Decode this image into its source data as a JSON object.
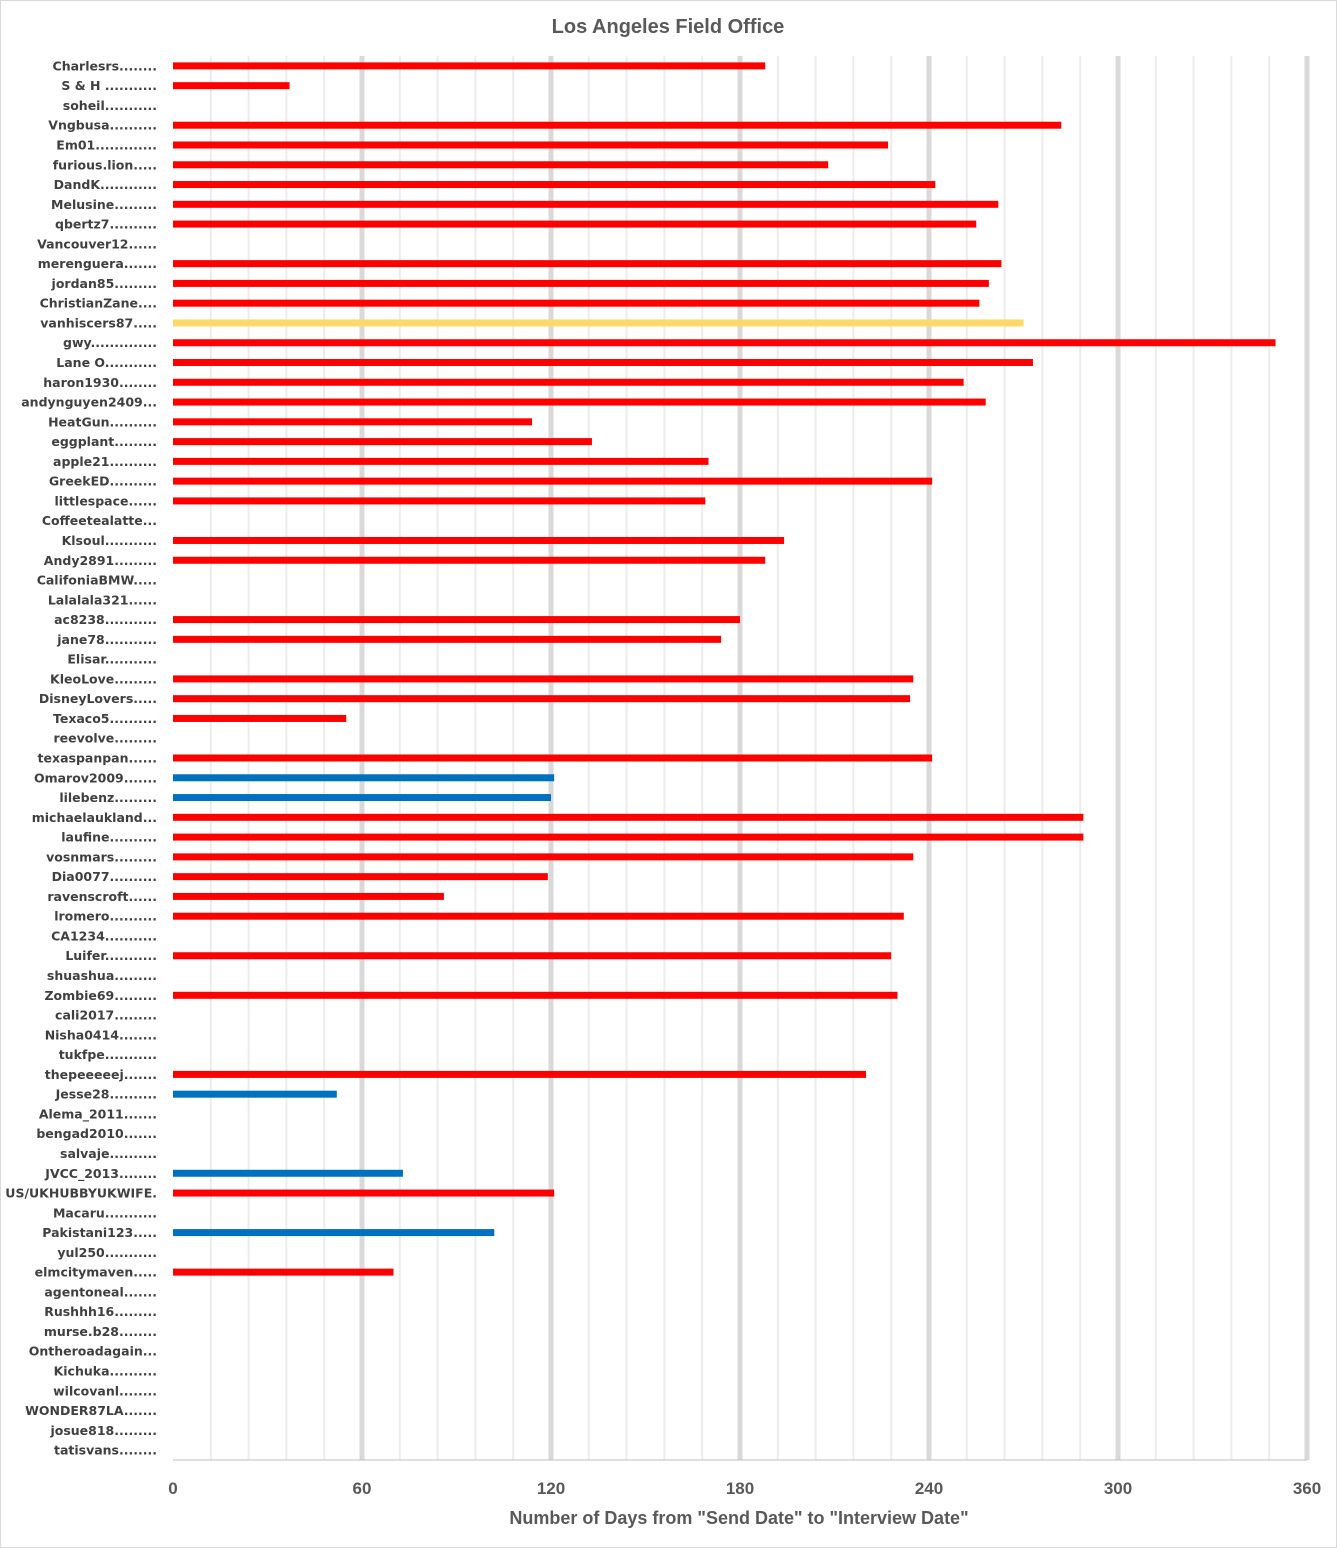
{
  "chart_data": {
    "type": "bar",
    "orientation": "horizontal",
    "title": "Los Angeles Field Office",
    "xlabel": "Number of Days from \"Send Date\" to \"Interview Date\"",
    "ylabel": "",
    "xlim": [
      0,
      360
    ],
    "xticks": [
      0,
      60,
      120,
      180,
      240,
      300,
      360
    ],
    "grid": "vertical, major every 60 and minor every 12",
    "colors": {
      "default": "#ff0000",
      "highlight": "#ffd966",
      "alt": "#0070c0"
    },
    "categories": [
      "Charlesrs........",
      "S & H ...........",
      "soheil...........",
      "Vngbusa..........",
      "Em01.............",
      "furious.lion.....",
      "DandK............",
      "Melusine.........",
      "qbertz7..........",
      "Vancouver12......",
      "merenguera.......",
      "jordan85.........",
      "ChristianZane....",
      "vanhiscers87.....",
      "gwy..............",
      "Lane O...........",
      "haron1930........",
      "andynguyen2409...",
      "HeatGun..........",
      "eggplant.........",
      "apple21..........",
      "GreekED..........",
      "littlespace......",
      "Coffeetealatte...",
      "Klsoul...........",
      "Andy2891.........",
      "CalifoniaBMW.....",
      "Lalalala321......",
      "ac8238...........",
      "jane78...........",
      "Elisar...........",
      "KleoLove.........",
      "DisneyLovers.....",
      "Texaco5..........",
      "reevolve.........",
      "texaspanpan......",
      "Omarov2009.......",
      "lilebenz.........",
      "michaelaukland...",
      "laufine..........",
      "vosnmars.........",
      "Dia0077..........",
      "ravenscroft......",
      "lromero..........",
      "CA1234...........",
      "Luifer...........",
      "shuashua.........",
      "Zombie69.........",
      "cali2017.........",
      "Nisha0414........",
      "tukfpe...........",
      "thepeeeeej.......",
      "Jesse28..........",
      "Alema_2011.......",
      "bengad2010.......",
      "salvaje..........",
      "JVCC_2013........",
      "US/UKHUBBYUKWIFE.",
      "Macaru...........",
      "Pakistani123.....",
      "yul250...........",
      "elmcitymaven.....",
      "agentoneal.......",
      "Rushhh16.........",
      "murse.b28........",
      "Ontheroadagain...",
      "Kichuka..........",
      "wilcovanl........",
      "WONDER87LA.......",
      "josue818.........",
      "tatisvans........"
    ],
    "values": [
      188,
      37,
      null,
      282,
      227,
      208,
      242,
      262,
      255,
      null,
      263,
      259,
      256,
      270,
      350,
      273,
      251,
      258,
      114,
      133,
      170,
      241,
      169,
      null,
      194,
      188,
      null,
      null,
      180,
      174,
      null,
      235,
      234,
      55,
      null,
      241,
      121,
      120,
      289,
      289,
      235,
      119,
      86,
      232,
      null,
      228,
      null,
      230,
      null,
      null,
      null,
      220,
      52,
      null,
      null,
      null,
      73,
      121,
      null,
      102,
      null,
      70,
      null,
      null,
      null,
      null,
      null,
      null,
      null,
      null,
      null
    ],
    "bar_colors": [
      "default",
      "default",
      "default",
      "default",
      "default",
      "default",
      "default",
      "default",
      "default",
      "default",
      "default",
      "default",
      "default",
      "highlight",
      "default",
      "default",
      "default",
      "default",
      "default",
      "default",
      "default",
      "default",
      "default",
      "default",
      "default",
      "default",
      "default",
      "default",
      "default",
      "default",
      "default",
      "default",
      "default",
      "default",
      "default",
      "default",
      "alt",
      "alt",
      "default",
      "default",
      "default",
      "default",
      "default",
      "default",
      "default",
      "default",
      "default",
      "default",
      "default",
      "default",
      "default",
      "default",
      "alt",
      "default",
      "default",
      "default",
      "alt",
      "default",
      "default",
      "alt",
      "default",
      "default",
      "default",
      "default",
      "default",
      "default",
      "default",
      "default",
      "default",
      "default",
      "default"
    ]
  }
}
